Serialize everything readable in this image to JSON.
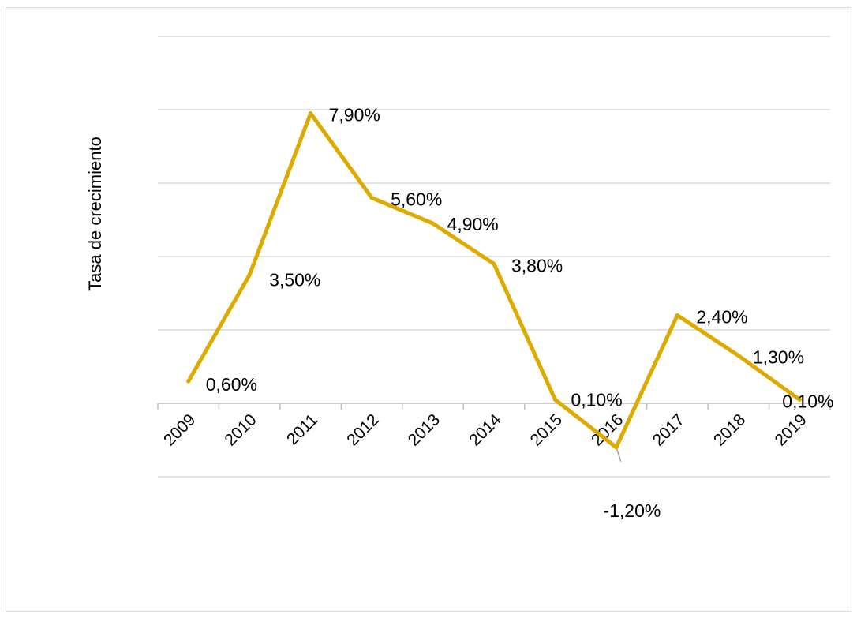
{
  "chart_data": {
    "type": "line",
    "title": "",
    "xlabel": "",
    "ylabel": "Tasa de crecimiento",
    "categories": [
      "2009",
      "2010",
      "2011",
      "2012",
      "2013",
      "2014",
      "2015",
      "2016",
      "2017",
      "2018",
      "2019"
    ],
    "series": [
      {
        "values": [
          0.6,
          3.5,
          7.9,
          5.6,
          4.9,
          3.8,
          0.1,
          -1.2,
          2.4,
          1.3,
          0.1
        ],
        "labels": [
          "0,60%",
          "3,50%",
          "7,90%",
          "5,60%",
          "4,90%",
          "3,80%",
          "0,10%",
          "-1,20%",
          "2,40%",
          "1,30%",
          "0,10%"
        ],
        "color": "#DDAA00"
      }
    ],
    "ylim": [
      -2,
      10
    ],
    "grid": true,
    "legend": "none",
    "colors": {
      "line": "#DDAA00",
      "grid": "#d9d9d9",
      "axis": "#bfbfbf",
      "leader": "#a6a6a6"
    }
  }
}
